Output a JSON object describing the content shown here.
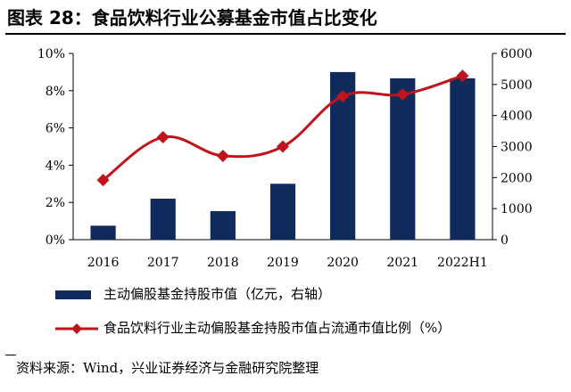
{
  "header": {
    "title": "图表 28：食品饮料行业公募基金市值占比变化"
  },
  "chart_data": {
    "type": "bar+line",
    "categories": [
      "2016",
      "2017",
      "2018",
      "2019",
      "2020",
      "2021",
      "2022H1"
    ],
    "series": [
      {
        "name": "主动偏股基金持股市值（亿元，右轴）",
        "type": "bar",
        "axis": "right",
        "values": [
          450,
          1320,
          920,
          1800,
          5400,
          5200,
          5200
        ],
        "color": "#0f2b5b"
      },
      {
        "name": "食品饮料行业主动偏股基金持股市值占流通市值比例（%）",
        "type": "line",
        "axis": "left",
        "values": [
          3.2,
          5.5,
          4.5,
          5.0,
          7.7,
          7.8,
          8.8
        ],
        "color": "#c0141c"
      }
    ],
    "y_left": {
      "ylim": [
        0,
        10
      ],
      "ticks": [
        0,
        2,
        4,
        6,
        8,
        10
      ],
      "tick_labels": [
        "0%",
        "2%",
        "4%",
        "6%",
        "8%",
        "10%"
      ]
    },
    "y_right": {
      "ylim": [
        0,
        6000
      ],
      "ticks": [
        0,
        1000,
        2000,
        3000,
        4000,
        5000,
        6000
      ],
      "tick_labels": [
        "0",
        "1000",
        "2000",
        "3000",
        "4000",
        "5000",
        "6000"
      ]
    },
    "grid": false,
    "legend_position": "bottom"
  },
  "legend": {
    "bar_label": "主动偏股基金持股市值（亿元，右轴）",
    "line_label": "食品饮料行业主动偏股基金持股市值占流通市值比例（%）"
  },
  "footer": {
    "source": "资料来源：Wind，兴业证券经济与金融研究院整理"
  }
}
